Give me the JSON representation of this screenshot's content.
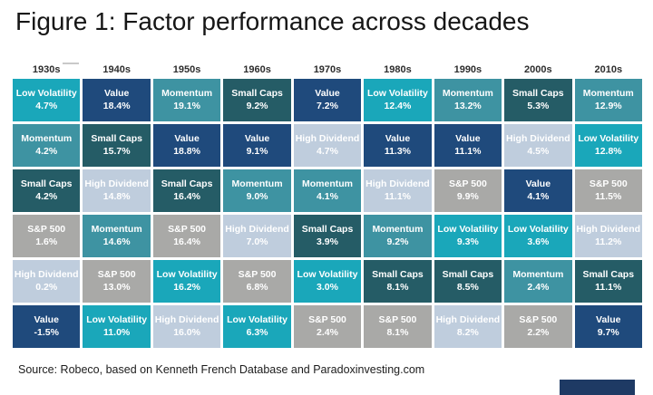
{
  "title": "Figure 1: Factor performance across decades",
  "source": "Source: Robeco, based on Kenneth French Database and Paradoxinvesting.com",
  "factor_colors": {
    "Low Volatility": "#1aa7ba",
    "Momentum": "#3e93a2",
    "Value": "#1f4a7c",
    "Small Caps": "#255c66",
    "High Dividend": "#bfcddd",
    "S&P 500": "#a9a9a7"
  },
  "chart_data": {
    "type": "heatmap",
    "title": "Figure 1: Factor performance across decades",
    "columns": [
      "1930s",
      "1940s",
      "1950s",
      "1960s",
      "1970s",
      "1980s",
      "1990s",
      "2000s",
      "2010s"
    ],
    "rows": [
      [
        {
          "factor": "Low Volatility",
          "value": "4.7%"
        },
        {
          "factor": "Value",
          "value": "18.4%"
        },
        {
          "factor": "Momentum",
          "value": "19.1%"
        },
        {
          "factor": "Small Caps",
          "value": "9.2%"
        },
        {
          "factor": "Value",
          "value": "7.2%"
        },
        {
          "factor": "Low Volatility",
          "value": "12.4%"
        },
        {
          "factor": "Momentum",
          "value": "13.2%"
        },
        {
          "factor": "Small Caps",
          "value": "5.3%"
        },
        {
          "factor": "Momentum",
          "value": "12.9%"
        }
      ],
      [
        {
          "factor": "Momentum",
          "value": "4.2%"
        },
        {
          "factor": "Small Caps",
          "value": "15.7%"
        },
        {
          "factor": "Value",
          "value": "18.8%"
        },
        {
          "factor": "Value",
          "value": "9.1%"
        },
        {
          "factor": "High Dividend",
          "value": "4.7%"
        },
        {
          "factor": "Value",
          "value": "11.3%"
        },
        {
          "factor": "Value",
          "value": "11.1%"
        },
        {
          "factor": "High Dividend",
          "value": "4.5%"
        },
        {
          "factor": "Low Volatility",
          "value": "12.8%"
        }
      ],
      [
        {
          "factor": "Small Caps",
          "value": "4.2%"
        },
        {
          "factor": "High Dividend",
          "value": "14.8%"
        },
        {
          "factor": "Small Caps",
          "value": "16.4%"
        },
        {
          "factor": "Momentum",
          "value": "9.0%"
        },
        {
          "factor": "Momentum",
          "value": "4.1%"
        },
        {
          "factor": "High Dividend",
          "value": "11.1%"
        },
        {
          "factor": "S&P 500",
          "value": "9.9%"
        },
        {
          "factor": "Value",
          "value": "4.1%"
        },
        {
          "factor": "S&P 500",
          "value": "11.5%"
        }
      ],
      [
        {
          "factor": "S&P 500",
          "value": "1.6%"
        },
        {
          "factor": "Momentum",
          "value": "14.6%"
        },
        {
          "factor": "S&P 500",
          "value": "16.4%"
        },
        {
          "factor": "High Dividend",
          "value": "7.0%"
        },
        {
          "factor": "Small Caps",
          "value": "3.9%"
        },
        {
          "factor": "Momentum",
          "value": "9.2%"
        },
        {
          "factor": "Low Volatility",
          "value": "9.3%"
        },
        {
          "factor": "Low Volatility",
          "value": "3.6%"
        },
        {
          "factor": "High Dividend",
          "value": "11.2%"
        }
      ],
      [
        {
          "factor": "High Dividend",
          "value": "0.2%"
        },
        {
          "factor": "S&P 500",
          "value": "13.0%"
        },
        {
          "factor": "Low Volatility",
          "value": "16.2%"
        },
        {
          "factor": "S&P 500",
          "value": "6.8%"
        },
        {
          "factor": "Low Volatility",
          "value": "3.0%"
        },
        {
          "factor": "Small Caps",
          "value": "8.1%"
        },
        {
          "factor": "Small Caps",
          "value": "8.5%"
        },
        {
          "factor": "Momentum",
          "value": "2.4%"
        },
        {
          "factor": "Small Caps",
          "value": "11.1%"
        }
      ],
      [
        {
          "factor": "Value",
          "value": "-1.5%"
        },
        {
          "factor": "Low Volatility",
          "value": "11.0%"
        },
        {
          "factor": "High Dividend",
          "value": "16.0%"
        },
        {
          "factor": "Low Volatility",
          "value": "6.3%"
        },
        {
          "factor": "S&P 500",
          "value": "2.4%"
        },
        {
          "factor": "S&P 500",
          "value": "8.1%"
        },
        {
          "factor": "High Dividend",
          "value": "8.2%"
        },
        {
          "factor": "S&P 500",
          "value": "2.2%"
        },
        {
          "factor": "Value",
          "value": "9.7%"
        }
      ]
    ]
  }
}
